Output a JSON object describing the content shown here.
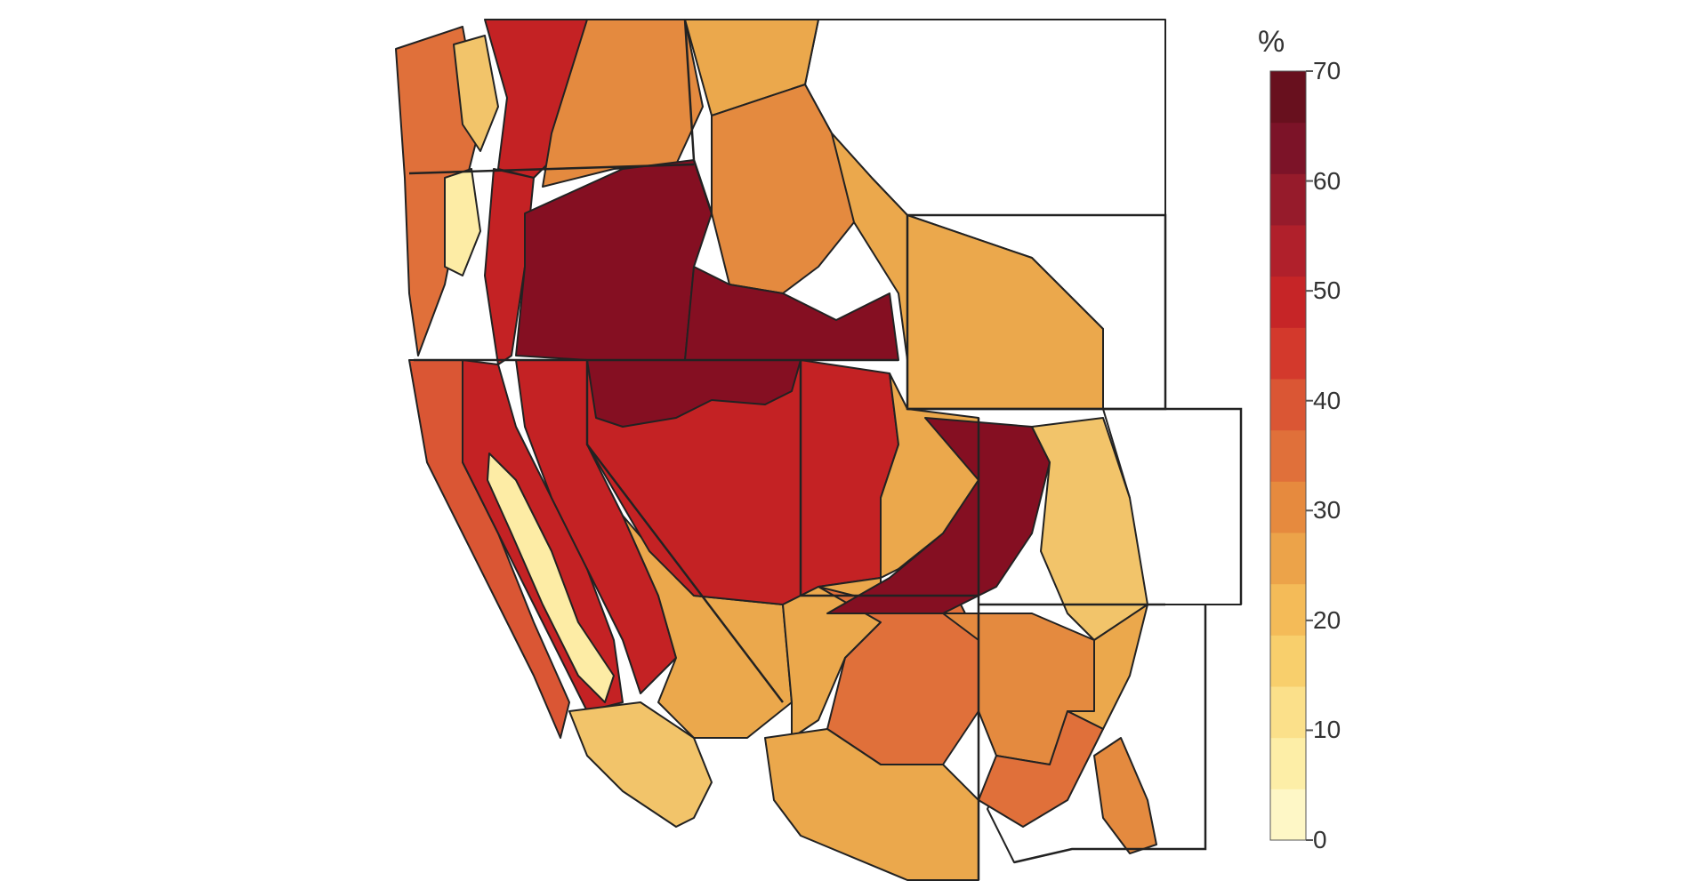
{
  "legend": {
    "unit": "%",
    "min": 0,
    "max": 70,
    "step": 5,
    "ticks": [
      "0",
      "10",
      "20",
      "30",
      "40",
      "50",
      "60",
      "70"
    ],
    "colors": [
      "#fef7c6",
      "#fdeea7",
      "#fbe08a",
      "#f8cf6c",
      "#f4bb58",
      "#eca349",
      "#e68a3e",
      "#e0703a",
      "#da5634",
      "#d3392c",
      "#c62527",
      "#b0202b",
      "#961b2b",
      "#7c1328",
      "#68101e"
    ]
  },
  "region_colors": {
    "cv": "#fdeca5",
    "low": "#f2c46a",
    "mid": "#eba84c",
    "or": "#e48a3f",
    "ro": "#de6f39",
    "red": "#c42224",
    "dred": "#850f22"
  }
}
